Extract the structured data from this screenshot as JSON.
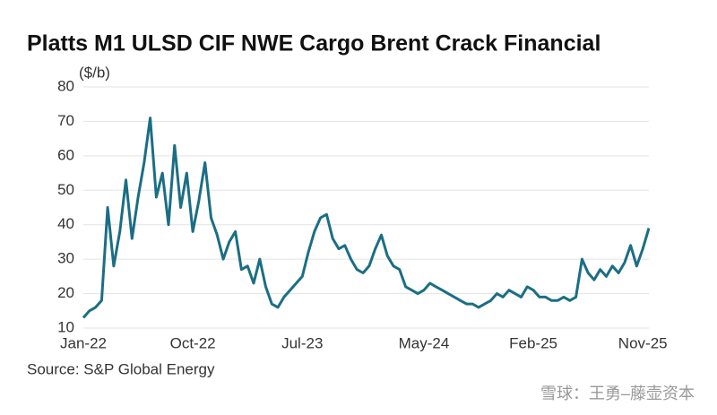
{
  "chart_data": {
    "type": "line",
    "title": "Platts M1 ULSD CIF NWE Cargo Brent Crack Financial",
    "y_label": "($/b)",
    "source": "Source: S&P Global Energy",
    "watermark": "雪球：王勇–藤壶资本",
    "categories": [
      "Jan-22",
      null,
      null,
      null,
      null,
      null,
      null,
      null,
      null,
      null,
      null,
      null,
      null,
      null,
      null,
      null,
      null,
      null,
      "Oct-22",
      null,
      null,
      null,
      null,
      null,
      null,
      null,
      null,
      null,
      null,
      null,
      null,
      null,
      null,
      null,
      null,
      null,
      "Jul-23",
      null,
      null,
      null,
      null,
      null,
      null,
      null,
      null,
      null,
      null,
      null,
      null,
      null,
      null,
      null,
      null,
      null,
      null,
      null,
      "May-24",
      null,
      null,
      null,
      null,
      null,
      null,
      null,
      null,
      null,
      null,
      null,
      null,
      null,
      null,
      null,
      null,
      null,
      "Feb-25",
      null,
      null,
      null,
      null,
      null,
      null,
      null,
      null,
      null,
      null,
      null,
      null,
      null,
      null,
      null,
      null,
      null,
      "Nov-25",
      null
    ],
    "series": [
      {
        "color": "#1b6e84",
        "values": [
          13,
          15,
          16,
          18,
          45,
          28,
          38,
          53,
          36,
          48,
          58,
          71,
          48,
          55,
          40,
          63,
          45,
          55,
          38,
          47,
          58,
          42,
          37,
          30,
          35,
          38,
          27,
          28,
          23,
          30,
          22,
          17,
          16,
          19,
          21,
          23,
          25,
          32,
          38,
          42,
          43,
          36,
          33,
          34,
          30,
          27,
          26,
          28,
          33,
          37,
          31,
          28,
          27,
          22,
          21,
          20,
          21,
          23,
          22,
          21,
          20,
          19,
          18,
          17,
          17,
          16,
          17,
          18,
          20,
          19,
          21,
          20,
          19,
          22,
          21,
          19,
          19,
          18,
          18,
          19,
          18,
          19,
          30,
          26,
          24,
          27,
          25,
          28,
          26,
          29,
          34,
          28,
          33,
          39
        ]
      }
    ],
    "ylim": [
      10,
      80
    ],
    "yticks": [
      10,
      20,
      30,
      40,
      50,
      60,
      70,
      80
    ],
    "grid": true
  }
}
